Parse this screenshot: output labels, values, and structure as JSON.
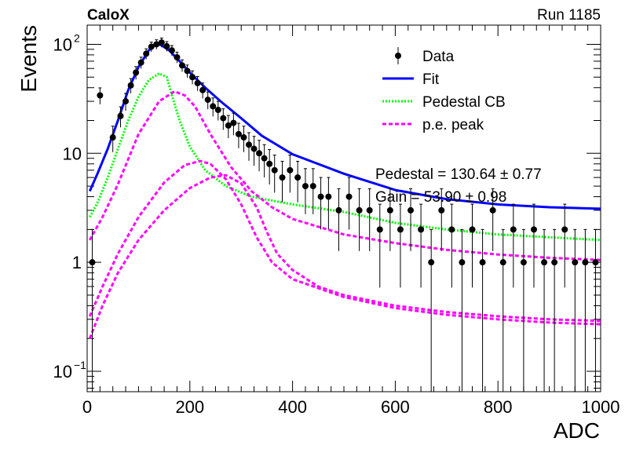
{
  "header": {
    "experiment": "CaloX",
    "run": "Run 1185"
  },
  "fit_results": {
    "line1": "Pedestal = 130.64 ± 0.77",
    "line2": "Gain = 53.90 ± 0.98"
  },
  "chart_data": {
    "type": "scatter",
    "xlabel": "ADC",
    "ylabel": "Events",
    "xlim": [
      0,
      1000
    ],
    "ylim": [
      0.065,
      150
    ],
    "yscale": "log",
    "x_ticks": [
      0,
      200,
      400,
      600,
      800,
      1000
    ],
    "y_ticks": [
      {
        "value": 0.1,
        "base": "10",
        "exp": "−1"
      },
      {
        "value": 1,
        "base": "1",
        "exp": ""
      },
      {
        "value": 10,
        "base": "10",
        "exp": ""
      },
      {
        "value": 100,
        "base": "10",
        "exp": "2"
      }
    ],
    "legend": {
      "position": "top-right",
      "entries": [
        {
          "label": "Data",
          "style": "marker"
        },
        {
          "label": "Fit",
          "style": "solid",
          "color": "#0000ff"
        },
        {
          "label": "Pedestal CB",
          "style": "dotted",
          "color": "#00ff00"
        },
        {
          "label": "p.e. peak",
          "style": "dashed",
          "color": "#ff00ff"
        }
      ]
    },
    "series": [
      {
        "name": "Fit",
        "color": "#0000ff",
        "style": "solid",
        "x": [
          5,
          20,
          40,
          60,
          80,
          100,
          120,
          135,
          145,
          160,
          180,
          200,
          230,
          260,
          300,
          340,
          400,
          500,
          600,
          700,
          800,
          900,
          1000
        ],
        "y": [
          4.5,
          6.5,
          11,
          20,
          38,
          62,
          88,
          102,
          98,
          88,
          70,
          55,
          40,
          30,
          21,
          14.5,
          9.8,
          6.5,
          4.6,
          3.8,
          3.4,
          3.2,
          3.1
        ]
      },
      {
        "name": "Pedestal CB",
        "color": "#00ff00",
        "style": "dotted",
        "x": [
          5,
          20,
          40,
          60,
          80,
          100,
          120,
          140,
          155,
          165,
          180,
          200,
          230,
          270,
          320,
          400,
          500,
          600,
          700,
          800,
          900,
          1000
        ],
        "y": [
          2.6,
          3.5,
          6,
          11,
          20,
          33,
          47,
          54,
          50,
          34,
          20,
          11.5,
          7,
          5,
          4,
          3.4,
          2.9,
          2.3,
          2,
          1.8,
          1.7,
          1.6
        ]
      },
      {
        "name": "p.e. peak 1",
        "color": "#ff00ff",
        "style": "dashed",
        "x": [
          5,
          30,
          60,
          100,
          140,
          170,
          190,
          210,
          240,
          280,
          320,
          360,
          400,
          500,
          600,
          700,
          800,
          900,
          1000
        ],
        "y": [
          1.6,
          2.6,
          5.2,
          15,
          30,
          37,
          34,
          27,
          15,
          7.5,
          4.5,
          3.2,
          2.5,
          1.8,
          1.5,
          1.3,
          1.18,
          1.1,
          1.05
        ]
      },
      {
        "name": "p.e. peak 2",
        "color": "#ff00ff",
        "style": "dashed",
        "x": [
          5,
          30,
          60,
          100,
          150,
          190,
          220,
          240,
          270,
          300,
          330,
          360,
          400,
          500,
          600,
          700,
          800,
          900,
          1000
        ],
        "y": [
          0.32,
          0.6,
          1.2,
          2.6,
          5.4,
          7.8,
          8.5,
          8.0,
          5.8,
          3.4,
          1.7,
          1.0,
          0.7,
          0.48,
          0.38,
          0.33,
          0.3,
          0.28,
          0.27
        ]
      },
      {
        "name": "p.e. peak 3",
        "color": "#ff00ff",
        "style": "dashed",
        "x": [
          5,
          30,
          60,
          100,
          150,
          200,
          240,
          270,
          300,
          330,
          350,
          370,
          400,
          450,
          500,
          600,
          700,
          800,
          900,
          1000
        ],
        "y": [
          0.2,
          0.4,
          0.8,
          1.6,
          3.0,
          4.8,
          6.0,
          6.3,
          5.3,
          3.2,
          1.9,
          1.2,
          0.85,
          0.6,
          0.5,
          0.4,
          0.35,
          0.32,
          0.3,
          0.29
        ]
      },
      {
        "name": "Data",
        "color": "#000000",
        "style": "marker",
        "x": [
          10,
          25,
          50,
          65,
          75,
          85,
          95,
          105,
          115,
          125,
          135,
          145,
          155,
          165,
          175,
          185,
          195,
          205,
          215,
          225,
          235,
          245,
          255,
          265,
          275,
          285,
          295,
          305,
          315,
          325,
          335,
          345,
          355,
          365,
          380,
          395,
          410,
          425,
          440,
          455,
          470,
          490,
          510,
          530,
          550,
          570,
          590,
          610,
          630,
          650,
          670,
          690,
          710,
          730,
          750,
          770,
          790,
          810,
          830,
          850,
          870,
          890,
          910,
          930,
          950,
          970,
          990
        ],
        "y": [
          1,
          34,
          14,
          22,
          30,
          42,
          55,
          68,
          82,
          95,
          100,
          104,
          96,
          88,
          76,
          64,
          57,
          50,
          44,
          38,
          31,
          27,
          25,
          21,
          18,
          19,
          15,
          14,
          12,
          11,
          10,
          9,
          8,
          7,
          6,
          7,
          6,
          5,
          5,
          4,
          4,
          3,
          4,
          3,
          3,
          2,
          3,
          2,
          3,
          2,
          1,
          3,
          2,
          1,
          2,
          1,
          3,
          1,
          2,
          1,
          2,
          1,
          1,
          2,
          1,
          1,
          1
        ]
      }
    ]
  }
}
